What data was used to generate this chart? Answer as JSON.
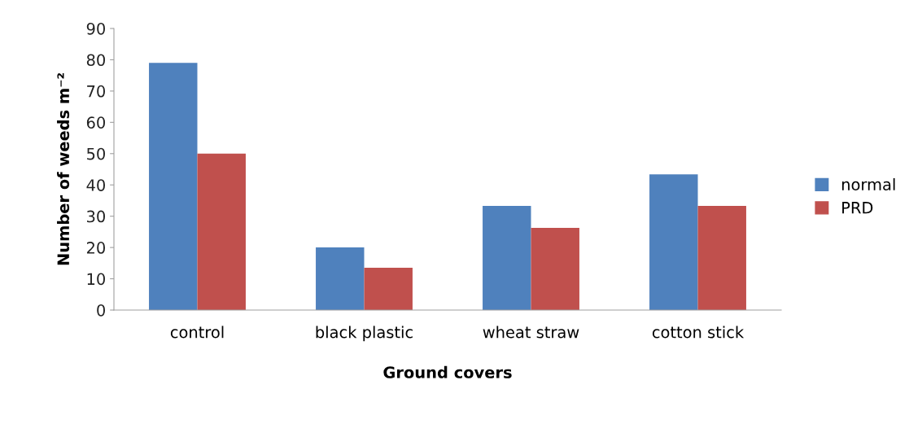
{
  "chart_data": {
    "type": "bar",
    "xlabel": "Ground covers",
    "ylabel": "Number of weeds m⁻²",
    "categories": [
      "control",
      "black plastic",
      "wheat straw",
      "cotton stick"
    ],
    "series": [
      {
        "name": "normal",
        "color": "#4f81bd",
        "values": [
          79,
          20,
          33.3,
          43.4
        ]
      },
      {
        "name": "PRD",
        "color": "#c0504d",
        "values": [
          50,
          13.5,
          26.3,
          33.3
        ]
      }
    ],
    "ylim": [
      0,
      90
    ],
    "yticks": [
      0,
      10,
      20,
      30,
      40,
      50,
      60,
      70,
      80,
      90
    ],
    "grid": false,
    "legend": "right"
  }
}
